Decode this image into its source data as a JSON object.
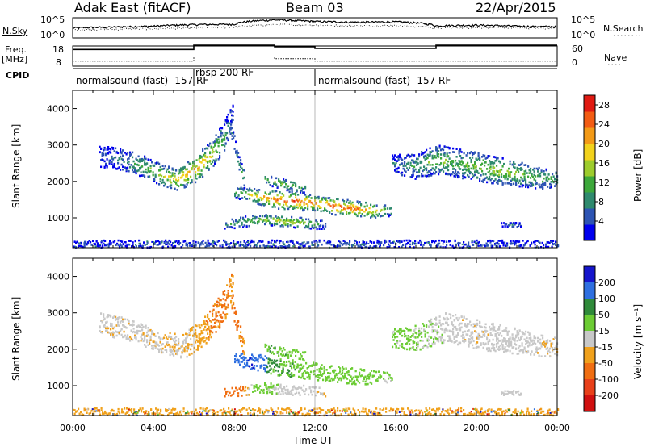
{
  "header": {
    "station": "Adak East (fitACF)",
    "beam": "Beam 03",
    "date": "22/Apr/2015"
  },
  "strip_labels": {
    "nsky": "N.Sky",
    "nsky_ticks": [
      "10^5",
      "10^0"
    ],
    "nsearch": "N.Search",
    "nsearch_ticks": [
      "10^5",
      "10^0"
    ],
    "freq": "Freq.",
    "freq_unit": "[MHz]",
    "freq_ticks": [
      "18",
      "8"
    ],
    "nave": "Nave",
    "nave_ticks": [
      "60",
      "0"
    ],
    "cpid": "CPID"
  },
  "cpid_segments": [
    {
      "label": "normalsound (fast) -157 RF",
      "start_hour": 0,
      "end_hour": 6
    },
    {
      "label": "rbsp 200 RF",
      "start_hour": 6,
      "end_hour": 12
    },
    {
      "label": "normalsound (fast) -157 RF",
      "start_hour": 12,
      "end_hour": 24
    }
  ],
  "colors": {
    "power_scale": [
      "#0000ee",
      "#2d54b3",
      "#2f8a6e",
      "#3da83b",
      "#9dcc2d",
      "#f2d21c",
      "#f39a17",
      "#f25c13",
      "#e01a12"
    ],
    "velocity_scale": [
      "#1515cc",
      "#2e6fe0",
      "#2f8a3a",
      "#6ccc34",
      "#c8c8c8",
      "#f0a11c",
      "#f06e12",
      "#e8401a",
      "#d01010"
    ]
  },
  "chart_data": [
    {
      "type": "line",
      "title": "N.Sky / N.Search",
      "x_unit": "hour UT",
      "y_scale": "log",
      "ylim": [
        1,
        100000
      ],
      "series": [
        {
          "name": "N.Sky",
          "x": [
            0,
            2,
            4,
            6,
            8,
            10,
            12,
            14,
            16,
            18,
            20,
            22,
            24
          ],
          "values": [
            300,
            500,
            800,
            2000,
            2500,
            30000,
            12000,
            8000,
            10000,
            1000,
            1500,
            800,
            600
          ]
        },
        {
          "name": "N.Search",
          "x": [
            0,
            2,
            4,
            6,
            8,
            10,
            12,
            14,
            16,
            18,
            20,
            22,
            24
          ],
          "values": [
            100,
            150,
            200,
            300,
            500,
            2000,
            1500,
            1000,
            1200,
            300,
            400,
            300,
            250
          ]
        }
      ]
    },
    {
      "type": "line",
      "title": "Freq. / Nave",
      "x_unit": "hour UT",
      "series": [
        {
          "name": "Freq.",
          "unit": "MHz",
          "ylim": [
            8,
            18
          ],
          "x": [
            0,
            6,
            6,
            10,
            10,
            12,
            12,
            18,
            18,
            24
          ],
          "values": [
            16.3,
            16.3,
            18.4,
            18.4,
            17.6,
            17.6,
            16.8,
            16.8,
            18.4,
            18.4
          ]
        },
        {
          "name": "Nave",
          "ylim": [
            0,
            60
          ],
          "x": [
            0,
            6,
            6,
            10,
            10,
            12,
            12,
            18,
            18,
            24
          ],
          "values": [
            15,
            15,
            30,
            30,
            22,
            22,
            15,
            15,
            15,
            15
          ]
        }
      ]
    },
    {
      "type": "heatmap",
      "ylabel": "Slant Range [km]",
      "xlim": [
        0,
        24
      ],
      "ylim": [
        180,
        4500
      ],
      "yticks": [
        1000,
        2000,
        3000,
        4000
      ],
      "colorbar": {
        "label": "Power [dB]",
        "ticks": [
          4,
          8,
          12,
          16,
          20,
          24,
          28
        ],
        "range": [
          0,
          30
        ]
      },
      "echo_bands": [
        {
          "name": "A",
          "start_hour": 1.3,
          "end_hour": 7.9,
          "x": [
            1.3,
            2.5,
            3.5,
            4.5,
            5.2,
            6.0,
            6.8,
            7.5,
            7.9
          ],
          "center_km": [
            2700,
            2600,
            2400,
            2150,
            2050,
            2300,
            2700,
            3200,
            3800
          ],
          "width_km": [
            300,
            300,
            300,
            300,
            300,
            350,
            400,
            450,
            350
          ],
          "peak_power": [
            4,
            8,
            12,
            16,
            20,
            22,
            18,
            10,
            6
          ]
        },
        {
          "name": "B",
          "start_hour": 7.8,
          "end_hour": 8.5,
          "x": [
            7.8,
            8.0,
            8.2,
            8.5
          ],
          "center_km": [
            3500,
            3000,
            2500,
            2000
          ],
          "width_km": [
            200,
            220,
            240,
            260
          ],
          "peak_power": [
            6,
            8,
            10,
            10
          ]
        },
        {
          "name": "C",
          "start_hour": 8.0,
          "end_hour": 15.8,
          "x": [
            8.0,
            9.0,
            10.0,
            11.0,
            12.0,
            13.0,
            14.0,
            15.0,
            15.8
          ],
          "center_km": [
            1700,
            1600,
            1500,
            1450,
            1400,
            1300,
            1250,
            1200,
            1200
          ],
          "width_km": [
            150,
            200,
            250,
            250,
            200,
            220,
            220,
            200,
            150
          ],
          "peak_power": [
            12,
            18,
            24,
            26,
            24,
            26,
            24,
            18,
            10
          ]
        },
        {
          "name": "D",
          "start_hour": 9.5,
          "end_hour": 11.5,
          "x": [
            9.5,
            10.2,
            11.0,
            11.5
          ],
          "center_km": [
            2050,
            1950,
            1850,
            1800
          ],
          "width_km": [
            120,
            150,
            150,
            120
          ],
          "peak_power": [
            10,
            14,
            12,
            8
          ]
        },
        {
          "name": "E",
          "start_hour": 7.5,
          "end_hour": 12.5,
          "x": [
            7.5,
            8.5,
            9.5,
            10.5,
            11.5,
            12.5
          ],
          "center_km": [
            800,
            900,
            950,
            900,
            850,
            800
          ],
          "width_km": [
            120,
            150,
            150,
            150,
            150,
            120
          ],
          "peak_power": [
            8,
            12,
            16,
            18,
            14,
            8
          ]
        },
        {
          "name": "F",
          "start_hour": 15.8,
          "end_hour": 24,
          "x": [
            15.8,
            17.0,
            18.0,
            19.0,
            20.0,
            21.0,
            22.0,
            23.0,
            24.0
          ],
          "center_km": [
            2500,
            2400,
            2600,
            2500,
            2400,
            2300,
            2200,
            2100,
            2050
          ],
          "width_km": [
            250,
            350,
            400,
            400,
            400,
            380,
            350,
            300,
            250
          ],
          "peak_power": [
            6,
            10,
            14,
            12,
            14,
            16,
            14,
            12,
            10
          ]
        },
        {
          "name": "G",
          "start_hour": 0,
          "end_hour": 24,
          "x": [
            0,
            12,
            24
          ],
          "center_km": [
            260,
            260,
            260
          ],
          "width_km": [
            120,
            120,
            120
          ],
          "peak_power": [
            4,
            6,
            4
          ]
        },
        {
          "name": "H",
          "start_hour": 21.2,
          "end_hour": 22.2,
          "x": [
            21.2,
            21.7,
            22.2
          ],
          "center_km": [
            800,
            800,
            800
          ],
          "width_km": [
            60,
            60,
            60
          ],
          "peak_power": [
            4,
            8,
            4
          ]
        }
      ]
    },
    {
      "type": "heatmap",
      "ylabel": "Slant Range [km]",
      "xlabel": "Time UT",
      "xlim": [
        0,
        24
      ],
      "ylim": [
        180,
        4500
      ],
      "yticks": [
        1000,
        2000,
        3000,
        4000
      ],
      "xticks": [
        "00:00",
        "04:00",
        "08:00",
        "12:00",
        "16:00",
        "20:00",
        "00:00"
      ],
      "colorbar": {
        "label": "Velocity [m s⁻¹]",
        "ticks": [
          200,
          100,
          50,
          15,
          -15,
          -50,
          -100,
          -200
        ]
      },
      "echo_bands": [
        {
          "name": "A",
          "start_hour": 1.3,
          "end_hour": 7.9,
          "x": [
            1.3,
            3.0,
            4.5,
            5.5,
            6.5,
            7.5,
            7.9
          ],
          "center_km": [
            2700,
            2500,
            2150,
            2100,
            2500,
            3200,
            3800
          ],
          "width_km": [
            300,
            300,
            300,
            350,
            400,
            450,
            350
          ],
          "velocity": [
            -5,
            -5,
            -10,
            -10,
            -40,
            -60,
            -40
          ]
        },
        {
          "name": "B",
          "start_hour": 7.8,
          "end_hour": 8.5,
          "x": [
            7.8,
            8.1,
            8.5
          ],
          "center_km": [
            3400,
            2700,
            2000
          ],
          "width_km": [
            200,
            230,
            260
          ],
          "velocity": [
            -50,
            -60,
            -40
          ]
        },
        {
          "name": "C1",
          "start_hour": 8.0,
          "end_hour": 9.6,
          "x": [
            8.0,
            8.8,
            9.6
          ],
          "center_km": [
            1750,
            1650,
            1600
          ],
          "width_km": [
            180,
            220,
            220
          ],
          "velocity": [
            180,
            200,
            150
          ]
        },
        {
          "name": "C2",
          "start_hour": 9.6,
          "end_hour": 15.8,
          "x": [
            9.6,
            11.0,
            12.5,
            14.0,
            15.8
          ],
          "center_km": [
            1550,
            1450,
            1350,
            1250,
            1200
          ],
          "width_km": [
            220,
            250,
            230,
            220,
            150
          ],
          "velocity": [
            60,
            40,
            30,
            30,
            20
          ]
        },
        {
          "name": "D",
          "start_hour": 9.5,
          "end_hour": 11.5,
          "x": [
            9.5,
            10.5,
            11.5
          ],
          "center_km": [
            2050,
            1900,
            1800
          ],
          "width_km": [
            120,
            150,
            120
          ],
          "velocity": [
            50,
            40,
            30
          ]
        },
        {
          "name": "E1",
          "start_hour": 7.5,
          "end_hour": 9.0,
          "x": [
            7.5,
            8.2,
            9.0
          ],
          "center_km": [
            800,
            850,
            900
          ],
          "width_km": [
            120,
            140,
            140
          ],
          "velocity": [
            -60,
            -80,
            30
          ]
        },
        {
          "name": "E2",
          "start_hour": 9.0,
          "end_hour": 12.5,
          "x": [
            9.0,
            10.5,
            12.5
          ],
          "center_km": [
            950,
            900,
            820
          ],
          "width_km": [
            140,
            150,
            120
          ],
          "velocity": [
            40,
            0,
            -5
          ]
        },
        {
          "name": "F",
          "start_hour": 15.8,
          "end_hour": 24,
          "x": [
            15.8,
            17.0,
            18.5,
            20.0,
            21.5,
            23.0,
            24.0
          ],
          "center_km": [
            2300,
            2300,
            2600,
            2400,
            2250,
            2100,
            2050
          ],
          "width_km": [
            250,
            350,
            400,
            400,
            380,
            300,
            250
          ],
          "velocity": [
            25,
            20,
            0,
            -5,
            0,
            -5,
            -10
          ]
        },
        {
          "name": "G",
          "start_hour": 0,
          "end_hour": 24,
          "x": [
            0,
            12,
            24
          ],
          "center_km": [
            260,
            260,
            260
          ],
          "width_km": [
            120,
            120,
            120
          ],
          "velocity": [
            -40,
            -30,
            -40
          ]
        },
        {
          "name": "H",
          "start_hour": 21.2,
          "end_hour": 22.2,
          "x": [
            21.2,
            21.7,
            22.2
          ],
          "center_km": [
            800,
            800,
            800
          ],
          "width_km": [
            60,
            60,
            60
          ],
          "velocity": [
            0,
            0,
            0
          ]
        }
      ]
    }
  ]
}
